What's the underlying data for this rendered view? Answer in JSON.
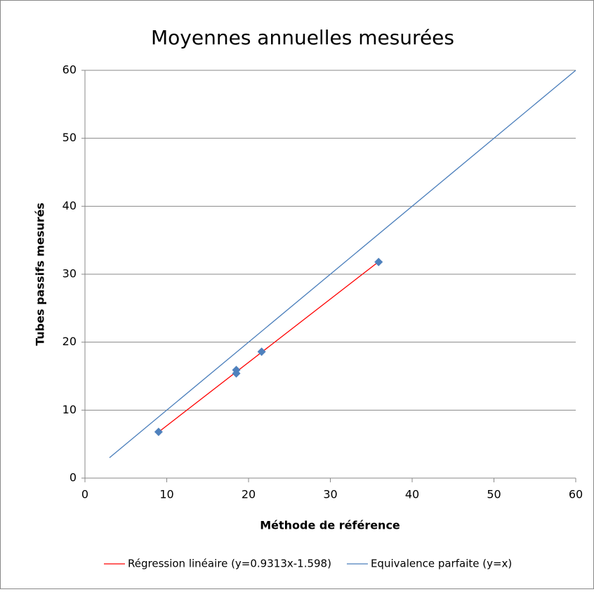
{
  "chart_data": {
    "type": "scatter",
    "title": "Moyennes annuelles mesurées",
    "xlabel": "Méthode de référence",
    "ylabel": "Tubes passifs mesurés",
    "xlim": [
      0,
      60
    ],
    "ylim": [
      0,
      60
    ],
    "xticks": [
      0,
      10,
      20,
      30,
      40,
      50,
      60
    ],
    "yticks": [
      0,
      10,
      20,
      30,
      40,
      50,
      60
    ],
    "grid": true,
    "legend": "bottom",
    "series": [
      {
        "color": "#4f81bd",
        "marker": "diamond",
        "x": [
          9.0,
          18.5,
          18.5,
          21.6,
          35.9
        ],
        "values": [
          6.8,
          15.9,
          15.4,
          18.6,
          31.8
        ]
      },
      {
        "name": "Régression linéaire (y=0.9313x-1.598)",
        "color": "#ff0000",
        "marker": "none",
        "x": [
          9.0,
          35.9
        ],
        "values": [
          6.78,
          31.84
        ]
      },
      {
        "name": "Equivalence parfaite (y=x)",
        "color": "#4a7ebb",
        "marker": "none",
        "x": [
          3,
          60
        ],
        "values": [
          3,
          60
        ]
      }
    ]
  }
}
